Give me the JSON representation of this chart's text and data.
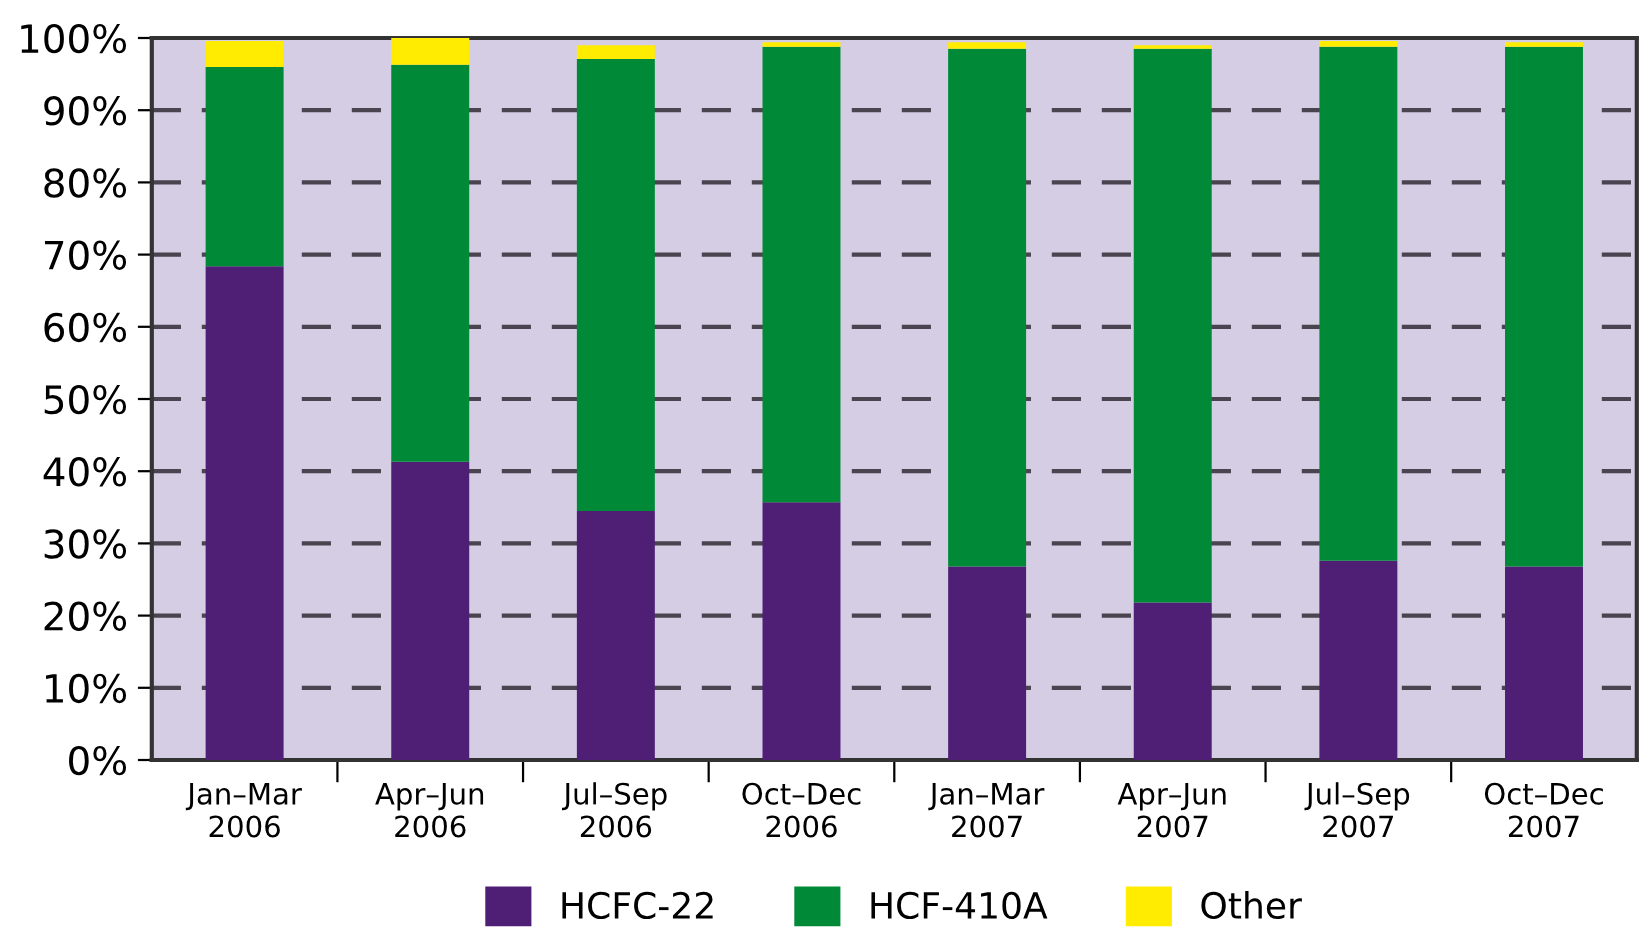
{
  "chart_data": {
    "type": "bar",
    "stacked": true,
    "categories": [
      "Jan–Mar\n2006",
      "Apr–Jun\n2006",
      "Jul–Sep\n2006",
      "Oct–Dec\n2006",
      "Jan–Mar\n2007",
      "Apr–Jun\n2007",
      "Jul–Sep\n2007",
      "Oct–Dec\n2007"
    ],
    "series": [
      {
        "name": "HCFC-22",
        "color": "#4f1f76",
        "values": [
          68.4,
          41.3,
          34.5,
          35.7,
          26.8,
          21.8,
          27.6,
          26.8
        ]
      },
      {
        "name": "HCF-410A",
        "color": "#008a37",
        "values": [
          27.6,
          55.0,
          62.6,
          63.1,
          71.7,
          76.7,
          71.2,
          72.0
        ]
      },
      {
        "name": "Other",
        "color": "#ffec00",
        "values": [
          3.6,
          3.7,
          1.9,
          0.6,
          0.9,
          0.5,
          0.8,
          0.6
        ]
      }
    ],
    "ylim": [
      0,
      100
    ],
    "yticks": [
      {
        "value": 0,
        "label": "0%"
      },
      {
        "value": 10,
        "label": "10%"
      },
      {
        "value": 20,
        "label": "20%"
      },
      {
        "value": 30,
        "label": "30%"
      },
      {
        "value": 40,
        "label": "40%"
      },
      {
        "value": 50,
        "label": "50%"
      },
      {
        "value": 60,
        "label": "60%"
      },
      {
        "value": 70,
        "label": "70%"
      },
      {
        "value": 80,
        "label": "80%"
      },
      {
        "value": 90,
        "label": "90%"
      },
      {
        "value": 100,
        "label": "100%"
      }
    ],
    "grid": "y",
    "line_style": "dashed",
    "legend": "bottom"
  }
}
